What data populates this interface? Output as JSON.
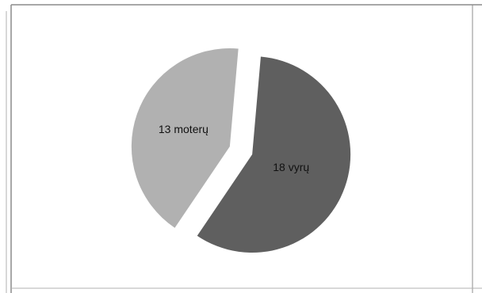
{
  "chart_data": {
    "type": "pie",
    "slices": [
      {
        "label": "18 vyrų",
        "value": 18,
        "color": "#5f5f5f"
      },
      {
        "label": "13 moterų",
        "value": 13,
        "color": "#b1b1b1"
      }
    ],
    "legend": "none",
    "exploded": true
  },
  "frame": {
    "border_color": "#8c8c8c",
    "background": "#ffffff"
  }
}
